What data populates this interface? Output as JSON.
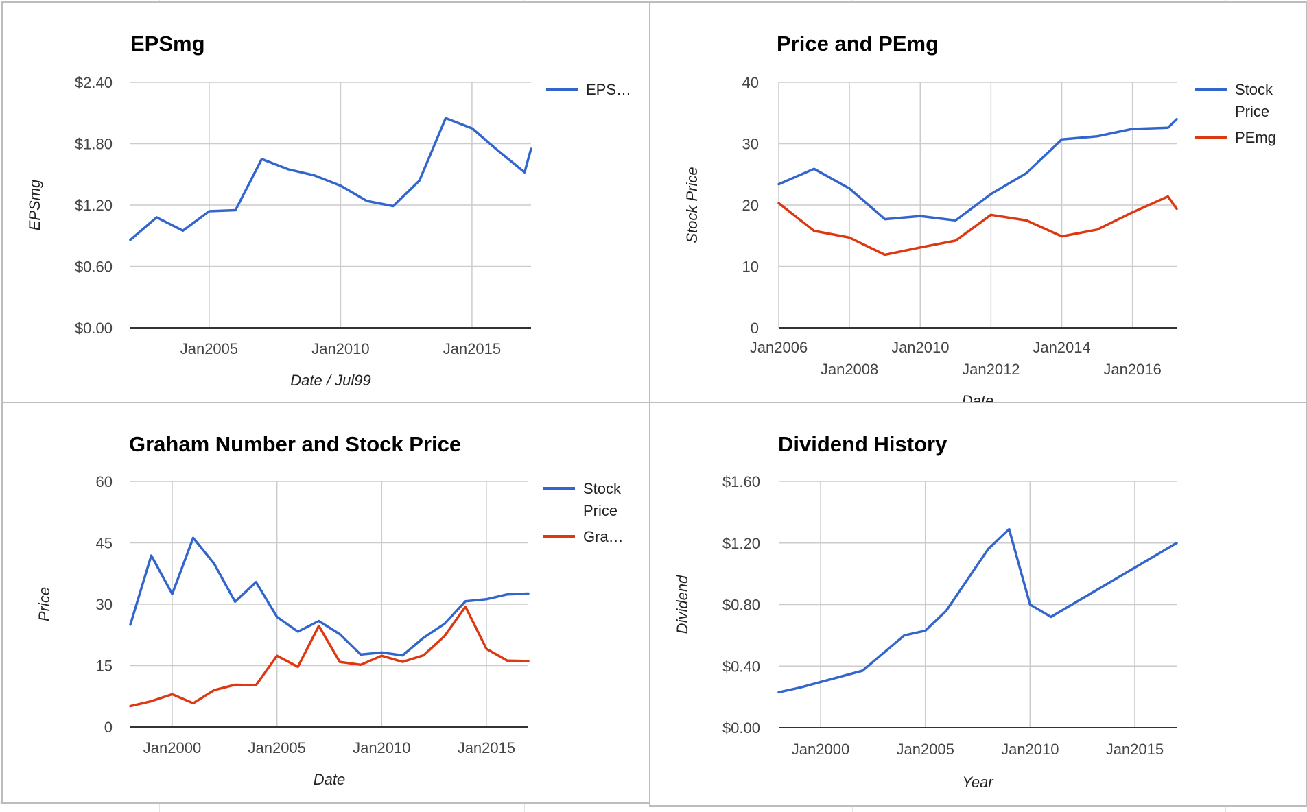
{
  "chart_data": [
    {
      "type": "line",
      "title": "EPSmg",
      "xlabel": "Date / Jul99",
      "ylabel": "EPSmg",
      "xlim": [
        "2002-01-01",
        "2017-04-01"
      ],
      "ylim": [
        0,
        2.4
      ],
      "yticks": [
        0,
        0.6,
        1.2,
        1.8,
        2.4
      ],
      "yticklabels": [
        "$0.00",
        "$0.60",
        "$1.20",
        "$1.80",
        "$2.40"
      ],
      "xticks": [
        "2005-01-01",
        "2010-01-01",
        "2015-01-01"
      ],
      "xticklabels": [
        "Jan2005",
        "Jan2010",
        "Jan2015"
      ],
      "grid": true,
      "legend": "right",
      "series": [
        {
          "name": "EPS…",
          "color": "#3366cc",
          "x": [
            "2002-01-01",
            "2003-01-01",
            "2004-01-01",
            "2005-01-01",
            "2006-01-01",
            "2007-01-01",
            "2008-01-01",
            "2009-01-01",
            "2010-01-01",
            "2011-01-01",
            "2012-01-01",
            "2013-01-01",
            "2014-01-01",
            "2015-01-01",
            "2016-01-01",
            "2017-01-01",
            "2017-04-01"
          ],
          "y": [
            0.86,
            1.08,
            0.95,
            1.14,
            1.15,
            1.65,
            1.55,
            1.49,
            1.39,
            1.24,
            1.19,
            1.44,
            2.05,
            1.95,
            1.73,
            1.52,
            1.75
          ]
        }
      ]
    },
    {
      "type": "line",
      "title": "Price and PEmg",
      "xlabel": "Date",
      "ylabel": "Stock Price",
      "xlim": [
        "2006-01-01",
        "2017-04-01"
      ],
      "ylim": [
        0,
        40
      ],
      "yticks": [
        0,
        10,
        20,
        30,
        40
      ],
      "yticklabels": [
        "0",
        "10",
        "20",
        "30",
        "40"
      ],
      "xticks": [
        "2006-01-01",
        "2008-01-01",
        "2010-01-01",
        "2012-01-01",
        "2014-01-01",
        "2016-01-01"
      ],
      "xticklabels": [
        "Jan2006",
        "Jan2008",
        "Jan2010",
        "Jan2012",
        "Jan2014",
        "Jan2016"
      ],
      "grid": true,
      "legend": "right",
      "series": [
        {
          "name": "Stock Price",
          "color": "#3366cc",
          "x": [
            "2006-01-01",
            "2007-01-01",
            "2008-01-01",
            "2009-01-01",
            "2010-01-01",
            "2011-01-01",
            "2012-01-01",
            "2013-01-01",
            "2014-01-01",
            "2015-01-01",
            "2016-01-01",
            "2017-01-01",
            "2017-04-01"
          ],
          "y": [
            23.4,
            25.9,
            22.7,
            17.7,
            18.2,
            17.5,
            21.8,
            25.2,
            30.7,
            31.2,
            32.4,
            32.6,
            34.0
          ]
        },
        {
          "name": "PEmg",
          "color": "#dc3912",
          "x": [
            "2006-01-01",
            "2007-01-01",
            "2008-01-01",
            "2009-01-01",
            "2010-01-01",
            "2011-01-01",
            "2012-01-01",
            "2013-01-01",
            "2014-01-01",
            "2015-01-01",
            "2016-01-01",
            "2017-01-01",
            "2017-04-01"
          ],
          "y": [
            20.3,
            15.8,
            14.7,
            11.9,
            13.1,
            14.2,
            18.4,
            17.5,
            14.9,
            16.0,
            18.8,
            21.4,
            19.4
          ]
        }
      ]
    },
    {
      "type": "line",
      "title": "Graham Number and Stock Price",
      "xlabel": "Date",
      "ylabel": "Price",
      "xlim": [
        "1998-01-01",
        "2017-01-01"
      ],
      "ylim": [
        0,
        60
      ],
      "yticks": [
        0,
        15,
        30,
        45,
        60
      ],
      "yticklabels": [
        "0",
        "15",
        "30",
        "45",
        "60"
      ],
      "xticks": [
        "2000-01-01",
        "2005-01-01",
        "2010-01-01",
        "2015-01-01"
      ],
      "xticklabels": [
        "Jan2000",
        "Jan2005",
        "Jan2010",
        "Jan2015"
      ],
      "grid": true,
      "legend": "right",
      "series": [
        {
          "name": "Stock Price",
          "color": "#3366cc",
          "x": [
            "1998-01-01",
            "1999-01-01",
            "2000-01-01",
            "2001-01-01",
            "2002-01-01",
            "2003-01-01",
            "2004-01-01",
            "2005-01-01",
            "2006-01-01",
            "2007-01-01",
            "2008-01-01",
            "2009-01-01",
            "2010-01-01",
            "2011-01-01",
            "2012-01-01",
            "2013-01-01",
            "2014-01-01",
            "2015-01-01",
            "2016-01-01",
            "2017-01-01"
          ],
          "y": [
            25.0,
            41.9,
            32.5,
            46.2,
            39.9,
            30.6,
            35.4,
            26.9,
            23.3,
            25.9,
            22.7,
            17.7,
            18.2,
            17.5,
            21.8,
            25.2,
            30.7,
            31.2,
            32.4,
            32.6
          ]
        },
        {
          "name": "Gra…",
          "color": "#dc3912",
          "x": [
            "1998-01-01",
            "1999-01-01",
            "2000-01-01",
            "2001-01-01",
            "2002-01-01",
            "2003-01-01",
            "2004-01-01",
            "2005-01-01",
            "2006-01-01",
            "2007-01-01",
            "2008-01-01",
            "2009-01-01",
            "2010-01-01",
            "2011-01-01",
            "2012-01-01",
            "2013-01-01",
            "2014-01-01",
            "2015-01-01",
            "2016-01-01",
            "2017-01-01"
          ],
          "y": [
            5.1,
            6.3,
            8.0,
            5.8,
            9.0,
            10.3,
            10.2,
            17.4,
            14.7,
            24.7,
            15.9,
            15.2,
            17.4,
            15.9,
            17.5,
            22.2,
            29.4,
            19.1,
            16.2,
            16.1
          ]
        }
      ]
    },
    {
      "type": "line",
      "title": "Dividend History",
      "xlabel": "Year",
      "ylabel": "Dividend",
      "xlim": [
        "1998-01-01",
        "2017-01-01"
      ],
      "ylim": [
        0,
        1.6
      ],
      "yticks": [
        0,
        0.4,
        0.8,
        1.2,
        1.6
      ],
      "yticklabels": [
        "$0.00",
        "$0.40",
        "$0.80",
        "$1.20",
        "$1.60"
      ],
      "xticks": [
        "2000-01-01",
        "2005-01-01",
        "2010-01-01",
        "2015-01-01"
      ],
      "xticklabels": [
        "Jan2000",
        "Jan2005",
        "Jan2010",
        "Jan2015"
      ],
      "grid": true,
      "legend": "none",
      "series": [
        {
          "name": "",
          "color": "#3366cc",
          "x": [
            "1998-01-01",
            "1999-01-01",
            "2002-01-01",
            "2004-01-01",
            "2005-01-01",
            "2006-01-01",
            "2008-01-01",
            "2009-01-01",
            "2010-01-01",
            "2011-01-01",
            "2017-01-01"
          ],
          "y": [
            0.23,
            0.26,
            0.37,
            0.6,
            0.63,
            0.76,
            1.16,
            1.29,
            0.8,
            0.72,
            1.2
          ]
        }
      ]
    }
  ]
}
